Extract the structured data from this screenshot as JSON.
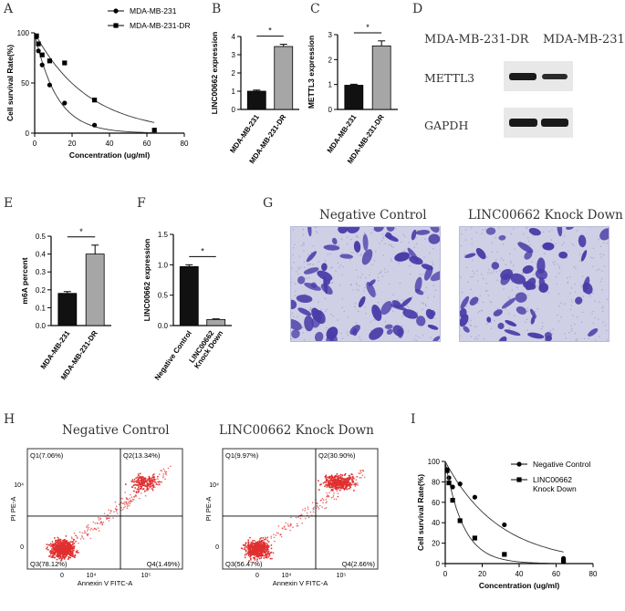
{
  "panel_labels": [
    "A",
    "B",
    "C",
    "D",
    "E",
    "F",
    "G",
    "H",
    "I"
  ],
  "colors": {
    "bar_dark": "#111111",
    "bar_gray": "#a6a6a6",
    "flow_dots": "#e03030",
    "stain": "#4a3ca8",
    "stain_bg": "#cfd0e6"
  },
  "chart_data": [
    {
      "id": "A",
      "type": "scatter",
      "xlabel": "Concentration (ug/ml)",
      "ylabel": "Cell survival Rate(%)",
      "xlim": [
        0,
        80
      ],
      "ylim": [
        0,
        100
      ],
      "xticks": [
        "0",
        "20",
        "40",
        "60",
        "80"
      ],
      "yticks": [
        "0",
        "50",
        "100"
      ],
      "legend_position": "top-right",
      "series": [
        {
          "name": "MDA-MB-231",
          "marker": "circle",
          "x": [
            1,
            2,
            4,
            8,
            16,
            32,
            64
          ],
          "y": [
            96,
            82,
            68,
            48,
            30,
            8,
            null
          ]
        },
        {
          "name": "MDA-MB-231-DR",
          "marker": "square",
          "x": [
            1,
            2,
            4,
            8,
            16,
            32,
            64
          ],
          "y": [
            97,
            89,
            78,
            72,
            70,
            33,
            3
          ]
        }
      ]
    },
    {
      "id": "B",
      "type": "bar",
      "ylabel": "LINC00662 expression",
      "categories": [
        "MDA-MB-231",
        "MDA-MB-231-DR"
      ],
      "values": [
        1.0,
        3.45
      ],
      "errors": [
        0.06,
        0.12
      ],
      "ylim": [
        0,
        4
      ],
      "yticks": [
        "0",
        "1",
        "2",
        "3",
        "4"
      ],
      "significance": "*"
    },
    {
      "id": "C",
      "type": "bar",
      "ylabel": "METTL3 expression",
      "categories": [
        "MDA-MB-231",
        "MDA-MB-231-DR"
      ],
      "values": [
        0.97,
        2.55
      ],
      "errors": [
        0.04,
        0.2
      ],
      "ylim": [
        0,
        3
      ],
      "yticks": [
        "0",
        "1",
        "2",
        "3"
      ],
      "significance": "*"
    },
    {
      "id": "E",
      "type": "bar",
      "ylabel": "m6A percent",
      "categories": [
        "MDA-MB-231",
        "MDA-MB-231-DR"
      ],
      "values": [
        0.18,
        0.4
      ],
      "errors": [
        0.01,
        0.05
      ],
      "ylim": [
        0,
        0.5
      ],
      "yticks": [
        "0.0",
        "0.1",
        "0.2",
        "0.3",
        "0.4",
        "0.5"
      ],
      "significance": "*"
    },
    {
      "id": "F",
      "type": "bar",
      "ylabel": "LINC00662 expression",
      "categories": [
        "Negative Control",
        "LINC00662 Knock Down"
      ],
      "values": [
        0.97,
        0.1
      ],
      "errors": [
        0.03,
        0.01
      ],
      "ylim": [
        0,
        1.5
      ],
      "yticks": [
        "0.0",
        "0.5",
        "1.0",
        "1.5"
      ],
      "significance": "*"
    },
    {
      "id": "I",
      "type": "scatter",
      "xlabel": "Concentration (ug/ml)",
      "ylabel": "Cell survival Rate(%)",
      "xlim": [
        0,
        80
      ],
      "ylim": [
        0,
        100
      ],
      "xticks": [
        "0",
        "20",
        "40",
        "60",
        "80"
      ],
      "yticks": [
        "0",
        "20",
        "40",
        "60",
        "80",
        "100"
      ],
      "legend_position": "right",
      "series": [
        {
          "name": "Negative Control",
          "marker": "circle",
          "x": [
            1,
            2,
            4,
            8,
            16,
            32,
            64
          ],
          "y": [
            92,
            84,
            75,
            78,
            65,
            38,
            5
          ]
        },
        {
          "name": "LINC00662 Knock Down",
          "marker": "square",
          "x": [
            1,
            2,
            4,
            8,
            16,
            32,
            64
          ],
          "y": [
            91,
            79,
            62,
            42,
            25,
            9,
            2
          ]
        }
      ]
    }
  ],
  "western_blot": {
    "columns": [
      "MDA-MB-231-DR",
      "MDA-MB-231"
    ],
    "rows": [
      "METTL3",
      "GAPDH"
    ]
  },
  "micrographs": {
    "titles": [
      "Negative Control",
      "LINC00662 Knock Down"
    ]
  },
  "flow": [
    {
      "title": "Negative Control",
      "q1": "Q1(7.06%)",
      "q2": "Q2(13.34%)",
      "q3": "Q3(78.12%)",
      "q4": "Q4(1.49%)"
    },
    {
      "title": "LINC00662 Knock Down",
      "q1": "Q1(9.97%)",
      "q2": "Q2(30.90%)",
      "q3": "Q3(56.47%)",
      "q4": "Q4(2.66%)"
    }
  ],
  "flow_axes": {
    "xlabel": "Annexin V FITC-A",
    "ylabel": "PI PE-A",
    "xticks": [
      "0",
      "10⁴",
      "10⁵"
    ],
    "yticks": [
      "0",
      "10⁴"
    ]
  }
}
